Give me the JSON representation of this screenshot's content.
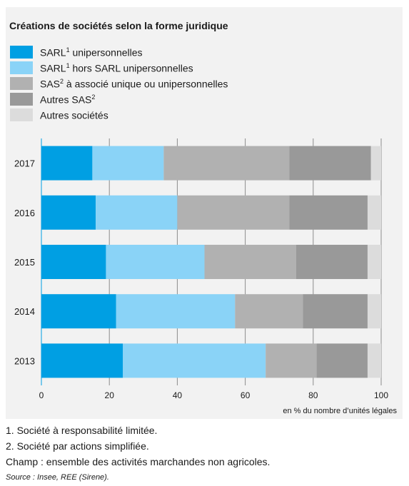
{
  "chart_data": {
    "type": "bar",
    "orientation": "horizontal",
    "stacked": true,
    "title": "Créations de sociétés selon la forme juridique",
    "xlabel": "en % du nombre d’unités légales",
    "xlim": [
      0,
      100
    ],
    "xticks": [
      0,
      20,
      40,
      60,
      80,
      100
    ],
    "grid": true,
    "legend_position": "top-left",
    "categories": [
      "2017",
      "2016",
      "2015",
      "2014",
      "2013"
    ],
    "series": [
      {
        "name": "SARL unipersonnelles",
        "footnote": "1",
        "color": "#009fe3",
        "values": [
          15,
          16,
          19,
          22,
          24
        ]
      },
      {
        "name": "SARL hors SARL unipersonnelles",
        "footnote": "1",
        "color": "#8ad3f7",
        "values": [
          21,
          24,
          29,
          35,
          42
        ]
      },
      {
        "name": "SAS à associé unique ou unipersonnelles",
        "footnote": "2",
        "color": "#b1b1b1",
        "values": [
          37,
          33,
          27,
          20,
          15
        ]
      },
      {
        "name": "Autres SAS",
        "footnote": "2",
        "color": "#999999",
        "values": [
          24,
          23,
          21,
          19,
          15
        ]
      },
      {
        "name": "Autres sociétés",
        "footnote": "",
        "color": "#dcdcdc",
        "values": [
          3,
          4,
          4,
          4,
          4
        ]
      }
    ]
  },
  "legend": [
    {
      "text": "SARL",
      "sup": "1",
      "rest": " unipersonnelles"
    },
    {
      "text": "SARL",
      "sup": "1",
      "rest": " hors SARL unipersonnelles"
    },
    {
      "text": "SAS",
      "sup": "2",
      "rest": " à associé unique ou unipersonnelles"
    },
    {
      "text": "Autres SAS",
      "sup": "2",
      "rest": ""
    },
    {
      "text": "Autres sociétés",
      "sup": "",
      "rest": ""
    }
  ],
  "notes": {
    "note1": "1. Société à responsabilité limitée.",
    "note2": "2. Société par actions simplifiée.",
    "champ": "Champ : ensemble des activités marchandes non agricoles.",
    "source": "Source : Insee, REE (Sirene)."
  }
}
